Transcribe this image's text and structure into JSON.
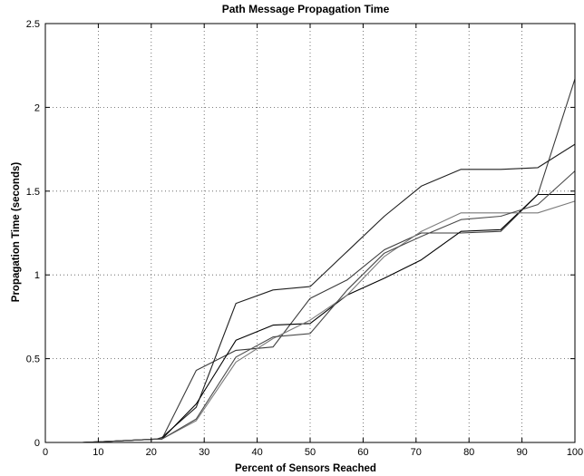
{
  "chart_data": {
    "type": "line",
    "title": "Path Message Propagation Time",
    "xlabel": "Percent of Sensors Reached",
    "ylabel": "Propagation Time (seconds)",
    "xlim": [
      0,
      100
    ],
    "ylim": [
      0,
      2.5
    ],
    "xticks": [
      "0",
      "10",
      "20",
      "30",
      "40",
      "50",
      "60",
      "70",
      "80",
      "90",
      "100"
    ],
    "yticks": [
      "0",
      "0.5",
      "1",
      "1.5",
      "2",
      "2.5"
    ],
    "grid": true,
    "legend": "none",
    "series": [
      {
        "color": "#3a3a3a",
        "x": [
          7,
          14,
          21,
          22,
          28.5,
          36,
          43,
          50,
          57,
          64,
          71,
          78.5,
          86,
          93,
          100
        ],
        "y": [
          0,
          0.01,
          0.02,
          0.02,
          0.43,
          0.55,
          0.57,
          0.86,
          0.97,
          1.15,
          1.25,
          1.25,
          1.26,
          1.48,
          2.17
        ]
      },
      {
        "color": "#1f1f1f",
        "x": [
          7,
          14,
          21,
          22,
          28.5,
          36,
          43,
          50,
          57,
          64,
          71,
          78.5,
          86,
          93,
          100
        ],
        "y": [
          0,
          0.01,
          0.02,
          0.03,
          0.21,
          0.83,
          0.91,
          0.93,
          1.14,
          1.35,
          1.53,
          1.63,
          1.63,
          1.64,
          1.78
        ]
      },
      {
        "color": "#000000",
        "x": [
          7,
          14,
          21,
          22,
          28.5,
          36,
          43,
          50,
          57,
          64,
          71,
          78.5,
          86,
          93,
          100
        ],
        "y": [
          0,
          0.01,
          0.02,
          0.02,
          0.23,
          0.61,
          0.7,
          0.71,
          0.88,
          0.98,
          1.09,
          1.26,
          1.27,
          1.48,
          1.48
        ]
      },
      {
        "color": "#7a7a7a",
        "x": [
          7,
          14,
          21,
          22,
          28.5,
          36,
          43,
          50,
          57,
          64,
          71,
          78.5,
          86,
          93,
          100
        ],
        "y": [
          0,
          0.01,
          0.02,
          0.02,
          0.13,
          0.48,
          0.62,
          0.73,
          0.88,
          1.11,
          1.26,
          1.37,
          1.37,
          1.37,
          1.44
        ]
      },
      {
        "color": "#4a4a4a",
        "x": [
          7,
          14,
          21,
          22,
          28.5,
          36,
          43,
          50,
          57,
          64,
          71,
          78.5,
          86,
          93,
          100
        ],
        "y": [
          0,
          0.01,
          0.02,
          0.02,
          0.14,
          0.51,
          0.63,
          0.65,
          0.91,
          1.13,
          1.23,
          1.33,
          1.35,
          1.42,
          1.62
        ]
      }
    ]
  }
}
